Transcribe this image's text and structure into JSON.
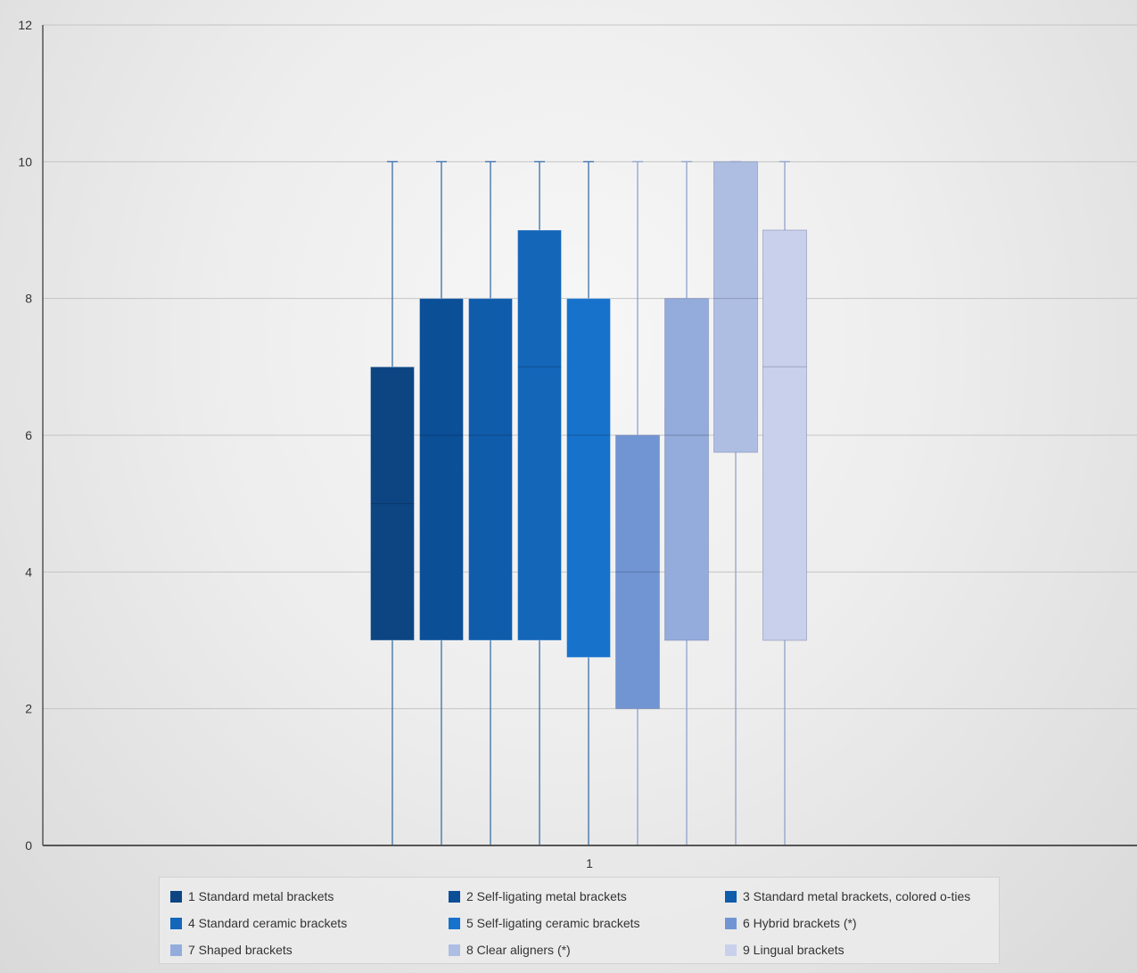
{
  "chart_data": {
    "type": "boxplot",
    "title": "",
    "xlabel": "",
    "ylabel": "",
    "ylim": [
      0,
      12
    ],
    "yticks": [
      0,
      2,
      4,
      6,
      8,
      10,
      12
    ],
    "xticks": [
      "1"
    ],
    "grid": true,
    "legend_position": "bottom",
    "series": [
      {
        "name": "1 Standard metal brackets",
        "color": "#0d4583",
        "min": 0,
        "q1": 3,
        "median": 5,
        "q3": 7,
        "max": 10
      },
      {
        "name": "2 Self-ligating metal brackets",
        "color": "#0b4f97",
        "min": 0,
        "q1": 3,
        "median": 6,
        "q3": 8,
        "max": 10
      },
      {
        "name": "3 Standard metal brackets, colored o-ties",
        "color": "#0f5cab",
        "min": 0,
        "q1": 3,
        "median": 6,
        "q3": 8,
        "max": 10
      },
      {
        "name": "4 Standard ceramic brackets",
        "color": "#1466b9",
        "min": 0,
        "q1": 3,
        "median": 7,
        "q3": 9,
        "max": 10
      },
      {
        "name": "5 Self-ligating ceramic brackets",
        "color": "#1772cb",
        "min": 0,
        "q1": 2.75,
        "median": 6,
        "q3": 8,
        "max": 10
      },
      {
        "name": "6 Hybrid brackets (*)",
        "color": "#7195d3",
        "min": 0,
        "q1": 2,
        "median": 4,
        "q3": 6,
        "max": 10
      },
      {
        "name": "7 Shaped brackets",
        "color": "#93acdc",
        "min": 0,
        "q1": 3,
        "median": 6,
        "q3": 8,
        "max": 10
      },
      {
        "name": "8 Clear aligners (*)",
        "color": "#aebee3",
        "min": 0,
        "q1": 5.75,
        "median": 8,
        "q3": 10,
        "max": 10
      },
      {
        "name": "9 Lingual brackets",
        "color": "#c9d0ec",
        "min": 0,
        "q1": 3,
        "median": 7,
        "q3": 9,
        "max": 10
      }
    ]
  },
  "legend": {
    "items": [
      {
        "label": "1 Standard metal brackets",
        "color": "#0d4583"
      },
      {
        "label": "2 Self-ligating metal brackets",
        "color": "#0b4f97"
      },
      {
        "label": "3 Standard metal brackets, colored o-ties",
        "color": "#0f5cab"
      },
      {
        "label": "4 Standard ceramic brackets",
        "color": "#1466b9"
      },
      {
        "label": "5 Self-ligating ceramic brackets",
        "color": "#1772cb"
      },
      {
        "label": "6 Hybrid brackets (*)",
        "color": "#7195d3"
      },
      {
        "label": "7 Shaped brackets",
        "color": "#93acdc"
      },
      {
        "label": "8 Clear aligners (*)",
        "color": "#aebee3"
      },
      {
        "label": "9 Lingual brackets",
        "color": "#c9d0ec"
      }
    ]
  }
}
